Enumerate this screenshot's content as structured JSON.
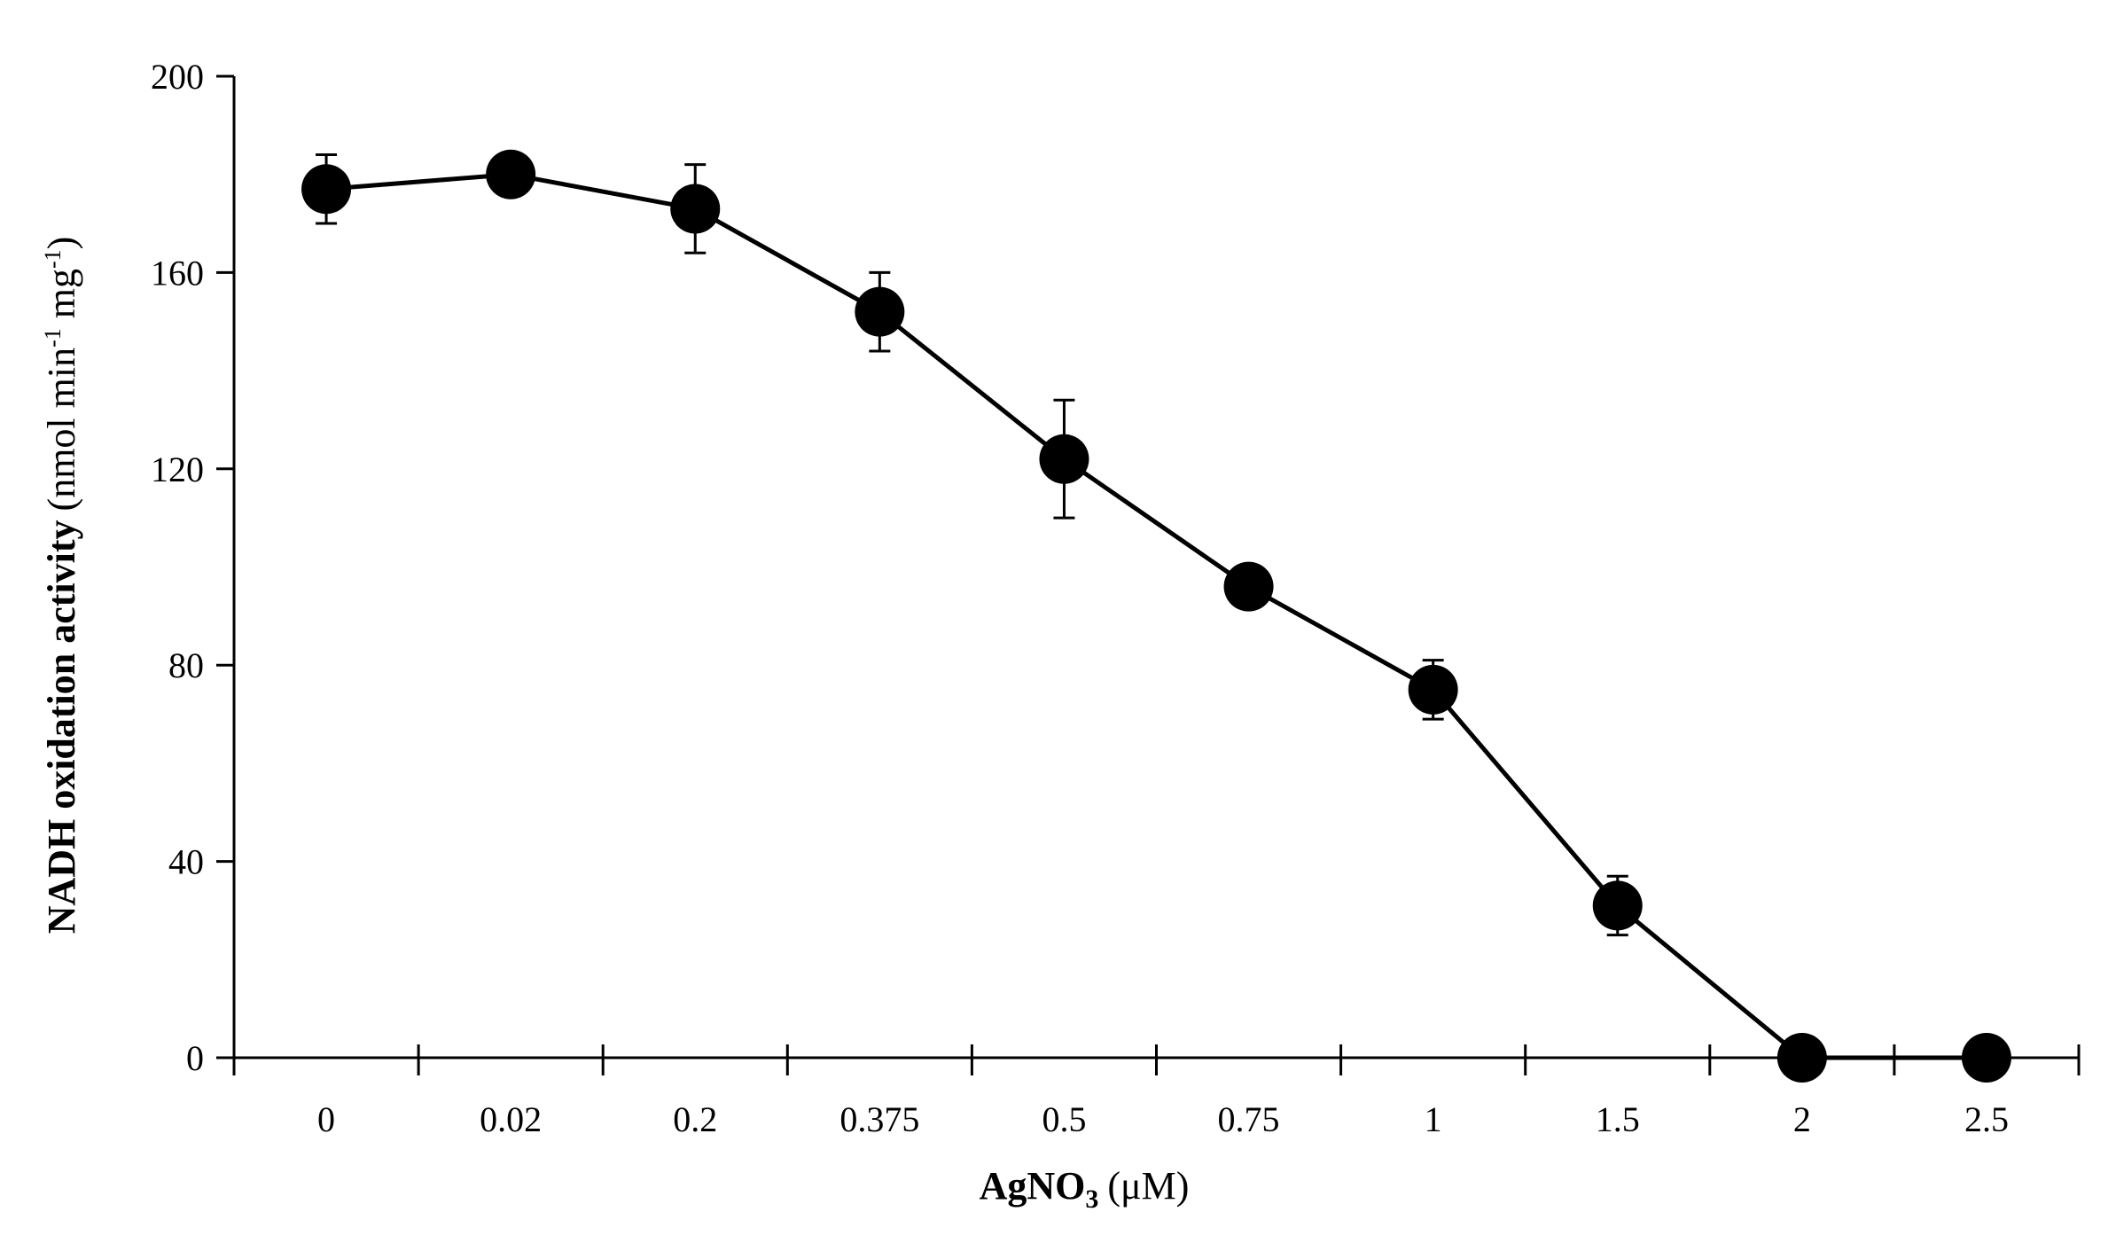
{
  "chart_data": {
    "type": "line",
    "categories": [
      "0",
      "0.02",
      "0.2",
      "0.375",
      "0.5",
      "0.75",
      "1",
      "1.5",
      "2",
      "2.5"
    ],
    "series": [
      {
        "values": [
          177,
          180,
          173,
          152,
          122,
          96,
          75,
          31,
          0,
          0
        ],
        "errors": [
          7,
          0,
          9,
          8,
          12,
          0,
          6,
          6,
          0,
          0
        ]
      }
    ],
    "ylim": [
      0,
      200
    ],
    "yticks": [
      0,
      40,
      80,
      120,
      160,
      200
    ],
    "xlabel": {
      "main": "AgNO",
      "subscript": "3",
      "unit": "(μM)"
    },
    "ylabel": {
      "main": "NADH oxidation activity",
      "unit_a": "(nmol min",
      "sup_a": "-1",
      "unit_b": " mg",
      "sup_b": "-1",
      "unit_c": ")"
    },
    "grid": false,
    "legend": "none",
    "colors": {
      "line": "#000000",
      "marker": "#000000"
    }
  }
}
